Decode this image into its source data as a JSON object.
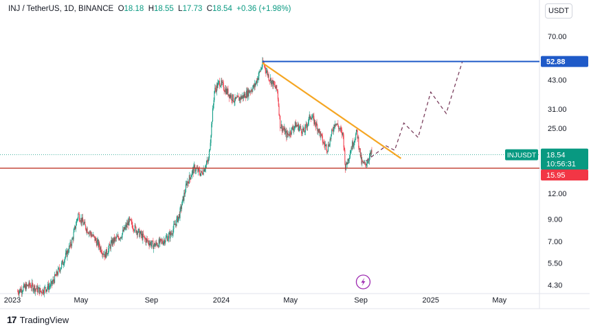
{
  "legend": {
    "symbol": "INJ / TetherUS, 1D, BINANCE",
    "o_label": "O",
    "o_value": "18.18",
    "h_label": "H",
    "h_value": "18.55",
    "l_label": "L",
    "l_value": "17.73",
    "c_label": "C",
    "c_value": "18.54",
    "change": "+0.36 (+1.98%)"
  },
  "currency": "USDT",
  "branding": {
    "mark": "17",
    "name": "TradingView"
  },
  "ticker_badge": "INJUSDT",
  "colors": {
    "up": "#089981",
    "down": "#f23645",
    "resistance": "#1f5ac8",
    "trendline": "#f5a623",
    "support": "#c0392b",
    "projection": "#7b3f5e",
    "lightning": "#9c27b0"
  },
  "chart_data": {
    "type": "candlestick",
    "y_scale": "log",
    "ylim": [
      3.9,
      85
    ],
    "x_range": [
      "2022-12-20",
      "2025-07-10"
    ],
    "y_ticks": [
      70.0,
      43.0,
      31.0,
      25.0,
      12.0,
      9.0,
      7.0,
      5.5,
      4.3
    ],
    "y_tick_labels": [
      "70.00",
      "43.00",
      "31.00",
      "25.00",
      "12.00",
      "9.00",
      "7.00",
      "5.50",
      "4.30"
    ],
    "x_ticks": [
      {
        "date": "2023-01-01",
        "label": "2023"
      },
      {
        "date": "2023-05-01",
        "label": "May"
      },
      {
        "date": "2023-09-01",
        "label": "Sep"
      },
      {
        "date": "2024-01-01",
        "label": "2024"
      },
      {
        "date": "2024-05-01",
        "label": "May"
      },
      {
        "date": "2024-09-01",
        "label": "Sep"
      },
      {
        "date": "2025-01-01",
        "label": "2025"
      },
      {
        "date": "2025-05-01",
        "label": "May"
      }
    ],
    "price_path": [
      [
        "2023-01-10",
        4.0
      ],
      [
        "2023-01-31",
        4.3
      ],
      [
        "2023-02-20",
        4.0
      ],
      [
        "2023-03-10",
        4.3
      ],
      [
        "2023-03-31",
        5.6
      ],
      [
        "2023-04-15",
        7.0
      ],
      [
        "2023-04-26",
        9.5
      ],
      [
        "2023-05-08",
        8.3
      ],
      [
        "2023-05-25",
        7.2
      ],
      [
        "2023-06-12",
        6.0
      ],
      [
        "2023-06-25",
        7.0
      ],
      [
        "2023-07-10",
        7.5
      ],
      [
        "2023-07-24",
        8.8
      ],
      [
        "2023-08-05",
        8.0
      ],
      [
        "2023-08-20",
        7.2
      ],
      [
        "2023-09-05",
        6.7
      ],
      [
        "2023-09-20",
        7.0
      ],
      [
        "2023-10-05",
        7.6
      ],
      [
        "2023-10-20",
        9.5
      ],
      [
        "2023-11-02",
        13.5
      ],
      [
        "2023-11-15",
        16.0
      ],
      [
        "2023-11-27",
        15.0
      ],
      [
        "2023-12-10",
        17.5
      ],
      [
        "2023-12-20",
        38.0
      ],
      [
        "2023-12-29",
        42.0
      ],
      [
        "2024-01-10",
        38.0
      ],
      [
        "2024-01-25",
        34.0
      ],
      [
        "2024-02-10",
        36.0
      ],
      [
        "2024-02-28",
        40.0
      ],
      [
        "2024-03-14",
        52.0
      ],
      [
        "2024-03-25",
        44.0
      ],
      [
        "2024-04-08",
        38.0
      ],
      [
        "2024-04-13",
        26.0
      ],
      [
        "2024-04-25",
        23.0
      ],
      [
        "2024-05-10",
        26.0
      ],
      [
        "2024-05-25",
        24.0
      ],
      [
        "2024-06-05",
        29.0
      ],
      [
        "2024-06-18",
        25.0
      ],
      [
        "2024-06-28",
        21.0
      ],
      [
        "2024-07-05",
        20.0
      ],
      [
        "2024-07-18",
        27.0
      ],
      [
        "2024-08-01",
        23.0
      ],
      [
        "2024-08-05",
        16.0
      ],
      [
        "2024-08-15",
        20.0
      ],
      [
        "2024-08-25",
        24.0
      ],
      [
        "2024-09-02",
        17.0
      ],
      [
        "2024-09-08",
        16.5
      ],
      [
        "2024-09-20",
        19.0
      ]
    ],
    "annotations": {
      "resistance": {
        "value": 52.88,
        "label": "52.88",
        "from": "2024-03-13",
        "to": "2025-07-06"
      },
      "support": {
        "value": 15.95,
        "label": "15.95"
      },
      "current": {
        "value": 18.54,
        "label": "18.54",
        "countdown": "10:56:31"
      },
      "trendline": [
        [
          "2024-03-13",
          52.0
        ],
        [
          "2024-11-10",
          17.8
        ]
      ],
      "projection": [
        [
          "2024-09-10",
          17.3
        ],
        [
          "2024-10-15",
          20.5
        ],
        [
          "2024-10-30",
          19.5
        ],
        [
          "2024-11-15",
          26.5
        ],
        [
          "2024-12-10",
          22.5
        ],
        [
          "2025-01-01",
          37.5
        ],
        [
          "2025-01-28",
          29.5
        ],
        [
          "2025-02-25",
          52.5
        ]
      ]
    }
  }
}
